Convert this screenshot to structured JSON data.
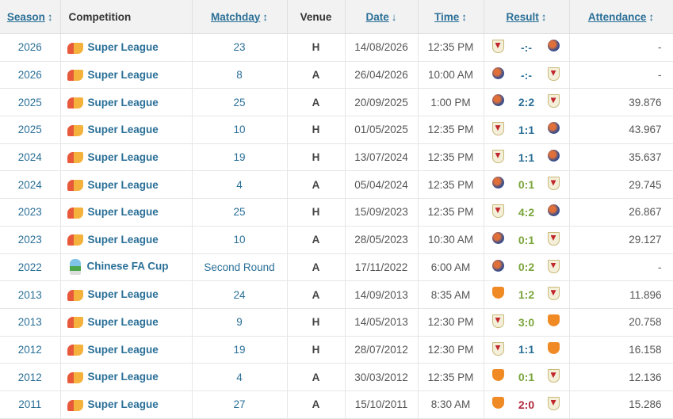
{
  "headers": {
    "season": "Season",
    "competition": "Competition",
    "matchday": "Matchday",
    "venue": "Venue",
    "date": "Date",
    "time": "Time",
    "result": "Result",
    "attendance": "Attendance",
    "sort_icon": "↕",
    "sort_desc_icon": "↓"
  },
  "colors": {
    "win": "#7aa53a",
    "draw": "#2a6f97",
    "loss": "#b0283a",
    "link": "#2a6f97"
  },
  "rows": [
    {
      "season": "2026",
      "competition": "Super League",
      "comp_icon": "super-league-logo",
      "matchday": "23",
      "venue": "H",
      "date": "14/08/2026",
      "time": "12:35 PM",
      "home_crest": "shield",
      "score": "-:-",
      "away_crest": "globe",
      "outcome": "draw",
      "attendance": "-"
    },
    {
      "season": "2026",
      "competition": "Super League",
      "comp_icon": "super-league-logo",
      "matchday": "8",
      "venue": "A",
      "date": "26/04/2026",
      "time": "10:00 AM",
      "home_crest": "globe",
      "score": "-:-",
      "away_crest": "shield",
      "outcome": "draw",
      "attendance": "-"
    },
    {
      "season": "2025",
      "competition": "Super League",
      "comp_icon": "super-league-logo",
      "matchday": "25",
      "venue": "A",
      "date": "20/09/2025",
      "time": "1:00 PM",
      "home_crest": "globe",
      "score": "2:2",
      "away_crest": "shield",
      "outcome": "draw",
      "attendance": "39.876"
    },
    {
      "season": "2025",
      "competition": "Super League",
      "comp_icon": "super-league-logo",
      "matchday": "10",
      "venue": "H",
      "date": "01/05/2025",
      "time": "12:35 PM",
      "home_crest": "shield",
      "score": "1:1",
      "away_crest": "globe",
      "outcome": "draw",
      "attendance": "43.967"
    },
    {
      "season": "2024",
      "competition": "Super League",
      "comp_icon": "super-league-logo",
      "matchday": "19",
      "venue": "H",
      "date": "13/07/2024",
      "time": "12:35 PM",
      "home_crest": "shield",
      "score": "1:1",
      "away_crest": "globe",
      "outcome": "draw",
      "attendance": "35.637"
    },
    {
      "season": "2024",
      "competition": "Super League",
      "comp_icon": "super-league-logo",
      "matchday": "4",
      "venue": "A",
      "date": "05/04/2024",
      "time": "12:35 PM",
      "home_crest": "globe",
      "score": "0:1",
      "away_crest": "shield",
      "outcome": "win",
      "attendance": "29.745"
    },
    {
      "season": "2023",
      "competition": "Super League",
      "comp_icon": "super-league-logo",
      "matchday": "25",
      "venue": "H",
      "date": "15/09/2023",
      "time": "12:35 PM",
      "home_crest": "shield",
      "score": "4:2",
      "away_crest": "globe",
      "outcome": "win",
      "attendance": "26.867"
    },
    {
      "season": "2023",
      "competition": "Super League",
      "comp_icon": "super-league-logo",
      "matchday": "10",
      "venue": "A",
      "date": "28/05/2023",
      "time": "10:30 AM",
      "home_crest": "globe",
      "score": "0:1",
      "away_crest": "shield",
      "outcome": "win",
      "attendance": "29.127"
    },
    {
      "season": "2022",
      "competition": "Chinese FA Cup",
      "comp_icon": "fa-cup-logo",
      "matchday": "Second Round",
      "venue": "A",
      "date": "17/11/2022",
      "time": "6:00 AM",
      "home_crest": "globe",
      "score": "0:2",
      "away_crest": "shield",
      "outcome": "win",
      "attendance": "-"
    },
    {
      "season": "2013",
      "competition": "Super League",
      "comp_icon": "super-league-logo",
      "matchday": "24",
      "venue": "A",
      "date": "14/09/2013",
      "time": "8:35 AM",
      "home_crest": "orange",
      "score": "1:2",
      "away_crest": "shield",
      "outcome": "win",
      "attendance": "11.896"
    },
    {
      "season": "2013",
      "competition": "Super League",
      "comp_icon": "super-league-logo",
      "matchday": "9",
      "venue": "H",
      "date": "14/05/2013",
      "time": "12:30 PM",
      "home_crest": "shield",
      "score": "3:0",
      "away_crest": "orange",
      "outcome": "win",
      "attendance": "20.758"
    },
    {
      "season": "2012",
      "competition": "Super League",
      "comp_icon": "super-league-logo",
      "matchday": "19",
      "venue": "H",
      "date": "28/07/2012",
      "time": "12:30 PM",
      "home_crest": "shield",
      "score": "1:1",
      "away_crest": "orange",
      "outcome": "draw",
      "attendance": "16.158"
    },
    {
      "season": "2012",
      "competition": "Super League",
      "comp_icon": "super-league-logo",
      "matchday": "4",
      "venue": "A",
      "date": "30/03/2012",
      "time": "12:35 PM",
      "home_crest": "orange",
      "score": "0:1",
      "away_crest": "shield",
      "outcome": "win",
      "attendance": "12.136"
    },
    {
      "season": "2011",
      "competition": "Super League",
      "comp_icon": "super-league-logo",
      "matchday": "27",
      "venue": "A",
      "date": "15/10/2011",
      "time": "8:30 AM",
      "home_crest": "orange",
      "score": "2:0",
      "away_crest": "shield",
      "outcome": "loss",
      "attendance": "15.286"
    }
  ]
}
